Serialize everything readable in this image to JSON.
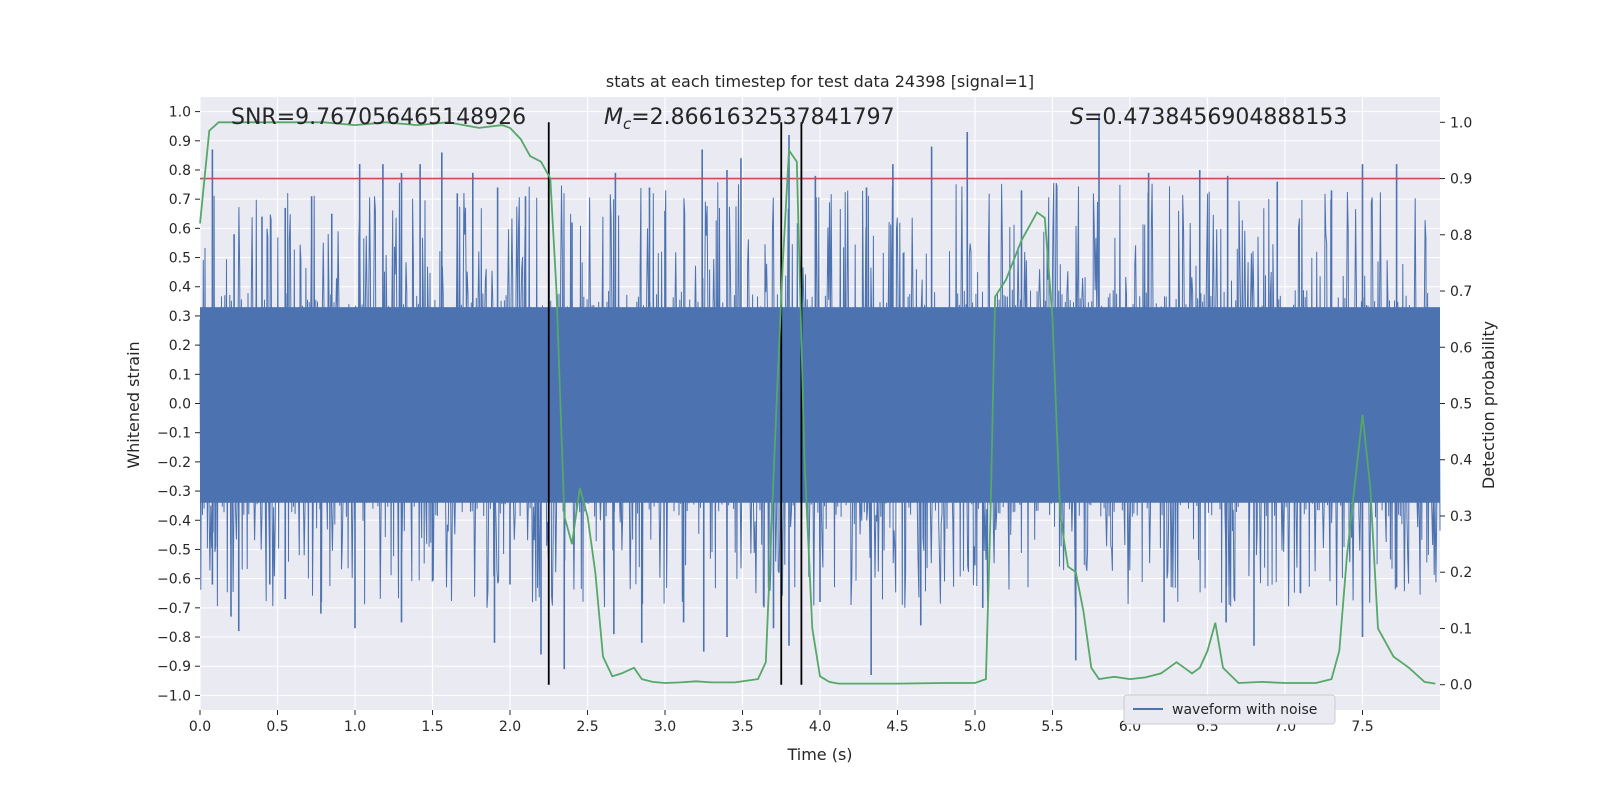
{
  "chart_data": {
    "type": "line",
    "title": "stats at each timestep for test data 24398 [signal=1]",
    "xlabel": "Time (s)",
    "ylabel_left": "Whitened strain",
    "ylabel_right": "Detection probability",
    "xlim": [
      0,
      8
    ],
    "ylim_left": [
      -1.05,
      1.05
    ],
    "ylim_right": [
      -0.045,
      1.045
    ],
    "x_ticks": [
      0.0,
      0.5,
      1.0,
      1.5,
      2.0,
      2.5,
      3.0,
      3.5,
      4.0,
      4.5,
      5.0,
      5.5,
      6.0,
      6.5,
      7.0,
      7.5
    ],
    "x_tick_labels": [
      "0.0",
      "0.5",
      "1.0",
      "1.5",
      "2.0",
      "2.5",
      "3.0",
      "3.5",
      "4.0",
      "4.5",
      "5.0",
      "5.5",
      "6.0",
      "6.5",
      "7.0",
      "7.5"
    ],
    "y_left_ticks": [
      -1.0,
      -0.9,
      -0.8,
      -0.7,
      -0.6,
      -0.5,
      -0.4,
      -0.3,
      -0.2,
      -0.1,
      0.0,
      0.1,
      0.2,
      0.3,
      0.4,
      0.5,
      0.6,
      0.7,
      0.8,
      0.9,
      1.0
    ],
    "y_left_tick_labels": [
      "−1.0",
      "−0.9",
      "−0.8",
      "−0.7",
      "−0.6",
      "−0.5",
      "−0.4",
      "−0.3",
      "−0.2",
      "−0.1",
      "0.0",
      "0.1",
      "0.2",
      "0.3",
      "0.4",
      "0.5",
      "0.6",
      "0.7",
      "0.8",
      "0.9",
      "1.0"
    ],
    "y_right_ticks": [
      0.0,
      0.1,
      0.2,
      0.3,
      0.4,
      0.5,
      0.6,
      0.7,
      0.8,
      0.9,
      1.0
    ],
    "y_right_tick_labels": [
      "0.0",
      "0.1",
      "0.2",
      "0.3",
      "0.4",
      "0.5",
      "0.6",
      "0.7",
      "0.8",
      "0.9",
      "1.0"
    ],
    "grid": true,
    "annotations": {
      "snr": "SNR=9.767056465148926",
      "mc_symbol": "M",
      "mc_sub": "c",
      "mc_value": "=2.8661632537841797",
      "s_symbol": "S",
      "s_value": "=0.4738456904888153"
    },
    "legend": {
      "placement": "lower-right",
      "entries": [
        "waveform with noise"
      ]
    },
    "threshold": {
      "axis": "right",
      "value": 0.9,
      "color": "#c44e52"
    },
    "vertical_lines": [
      2.25,
      3.75,
      3.88
    ],
    "waveform": {
      "name": "waveform with noise",
      "color": "#4c72b0",
      "x_range": [
        0,
        8
      ],
      "band": [
        -0.34,
        0.33
      ],
      "peaks_pos": [
        [
          0.08,
          0.87
        ],
        [
          0.22,
          0.58
        ],
        [
          0.4,
          0.64
        ],
        [
          0.55,
          0.67
        ],
        [
          0.72,
          0.71
        ],
        [
          0.85,
          0.65
        ],
        [
          1.03,
          0.82
        ],
        [
          1.18,
          0.82
        ],
        [
          1.3,
          0.79
        ],
        [
          1.42,
          0.82
        ],
        [
          1.56,
          0.86
        ],
        [
          1.66,
          0.72
        ],
        [
          1.76,
          0.79
        ],
        [
          1.92,
          0.74
        ],
        [
          2.1,
          0.71
        ],
        [
          2.4,
          0.62
        ],
        [
          2.68,
          0.79
        ],
        [
          2.9,
          0.74
        ],
        [
          3.0,
          0.66
        ],
        [
          3.24,
          0.87
        ],
        [
          3.4,
          0.8
        ],
        [
          3.49,
          0.84
        ],
        [
          3.8,
          0.92
        ],
        [
          3.97,
          0.78
        ],
        [
          4.3,
          0.74
        ],
        [
          4.47,
          0.82
        ],
        [
          4.72,
          0.88
        ],
        [
          4.95,
          0.93
        ],
        [
          5.3,
          0.73
        ],
        [
          5.8,
          0.99
        ],
        [
          6.12,
          0.79
        ],
        [
          6.45,
          0.8
        ],
        [
          6.63,
          0.78
        ],
        [
          6.95,
          0.76
        ],
        [
          7.3,
          0.73
        ],
        [
          7.5,
          0.82
        ],
        [
          7.72,
          0.82
        ]
      ],
      "peaks_neg": [
        [
          0.08,
          -0.62
        ],
        [
          0.2,
          -0.73
        ],
        [
          0.25,
          -0.78
        ],
        [
          0.45,
          -0.62
        ],
        [
          0.55,
          -0.67
        ],
        [
          0.78,
          -0.72
        ],
        [
          1.0,
          -0.77
        ],
        [
          1.3,
          -0.75
        ],
        [
          1.5,
          -0.61
        ],
        [
          1.9,
          -0.82
        ],
        [
          2.0,
          -0.62
        ],
        [
          2.2,
          -0.86
        ],
        [
          2.35,
          -0.91
        ],
        [
          2.67,
          -0.79
        ],
        [
          2.85,
          -0.82
        ],
        [
          3.12,
          -0.75
        ],
        [
          3.25,
          -0.85
        ],
        [
          3.4,
          -0.8
        ],
        [
          3.7,
          -0.77
        ],
        [
          3.8,
          -0.83
        ],
        [
          4.0,
          -0.68
        ],
        [
          4.33,
          -0.93
        ],
        [
          4.65,
          -0.76
        ],
        [
          5.05,
          -0.7
        ],
        [
          5.65,
          -0.88
        ],
        [
          6.22,
          -0.75
        ],
        [
          6.62,
          -0.75
        ],
        [
          6.8,
          -0.83
        ],
        [
          7.1,
          -0.65
        ],
        [
          7.5,
          -0.8
        ],
        [
          7.72,
          -0.63
        ]
      ]
    },
    "series": [
      {
        "name": "detection probability",
        "axis": "right",
        "color": "#55a868",
        "x": [
          0.0,
          0.06,
          0.12,
          0.3,
          0.6,
          0.8,
          1.0,
          1.2,
          1.4,
          1.6,
          1.8,
          1.95,
          2.0,
          2.07,
          2.13,
          2.2,
          2.26,
          2.3,
          2.35,
          2.4,
          2.45,
          2.5,
          2.55,
          2.6,
          2.66,
          2.72,
          2.8,
          2.85,
          2.92,
          3.0,
          3.1,
          3.2,
          3.3,
          3.45,
          3.6,
          3.65,
          3.72,
          3.76,
          3.8,
          3.85,
          3.9,
          3.95,
          4.0,
          4.06,
          4.12,
          4.2,
          4.5,
          4.8,
          5.0,
          5.07,
          5.1,
          5.13,
          5.2,
          5.3,
          5.4,
          5.45,
          5.5,
          5.55,
          5.6,
          5.65,
          5.7,
          5.75,
          5.8,
          5.85,
          5.9,
          6.0,
          6.1,
          6.2,
          6.25,
          6.3,
          6.35,
          6.4,
          6.45,
          6.5,
          6.55,
          6.6,
          6.7,
          6.85,
          7.0,
          7.2,
          7.3,
          7.35,
          7.4,
          7.5,
          7.55,
          7.6,
          7.7,
          7.8,
          7.9,
          7.97
        ],
        "y": [
          0.82,
          0.985,
          1.0,
          1.0,
          1.0,
          1.0,
          0.995,
          1.0,
          0.995,
          1.0,
          0.99,
          0.995,
          0.99,
          0.97,
          0.94,
          0.93,
          0.9,
          0.7,
          0.3,
          0.25,
          0.35,
          0.3,
          0.2,
          0.05,
          0.015,
          0.02,
          0.03,
          0.01,
          0.005,
          0.003,
          0.004,
          0.006,
          0.004,
          0.004,
          0.01,
          0.04,
          0.5,
          0.75,
          0.95,
          0.93,
          0.4,
          0.1,
          0.015,
          0.005,
          0.002,
          0.002,
          0.002,
          0.003,
          0.003,
          0.01,
          0.3,
          0.69,
          0.72,
          0.79,
          0.84,
          0.83,
          0.65,
          0.3,
          0.21,
          0.2,
          0.13,
          0.03,
          0.01,
          0.012,
          0.014,
          0.01,
          0.013,
          0.02,
          0.03,
          0.04,
          0.03,
          0.02,
          0.03,
          0.06,
          0.11,
          0.03,
          0.003,
          0.005,
          0.003,
          0.003,
          0.01,
          0.06,
          0.23,
          0.48,
          0.35,
          0.1,
          0.05,
          0.03,
          0.005,
          0.002
        ]
      }
    ]
  }
}
